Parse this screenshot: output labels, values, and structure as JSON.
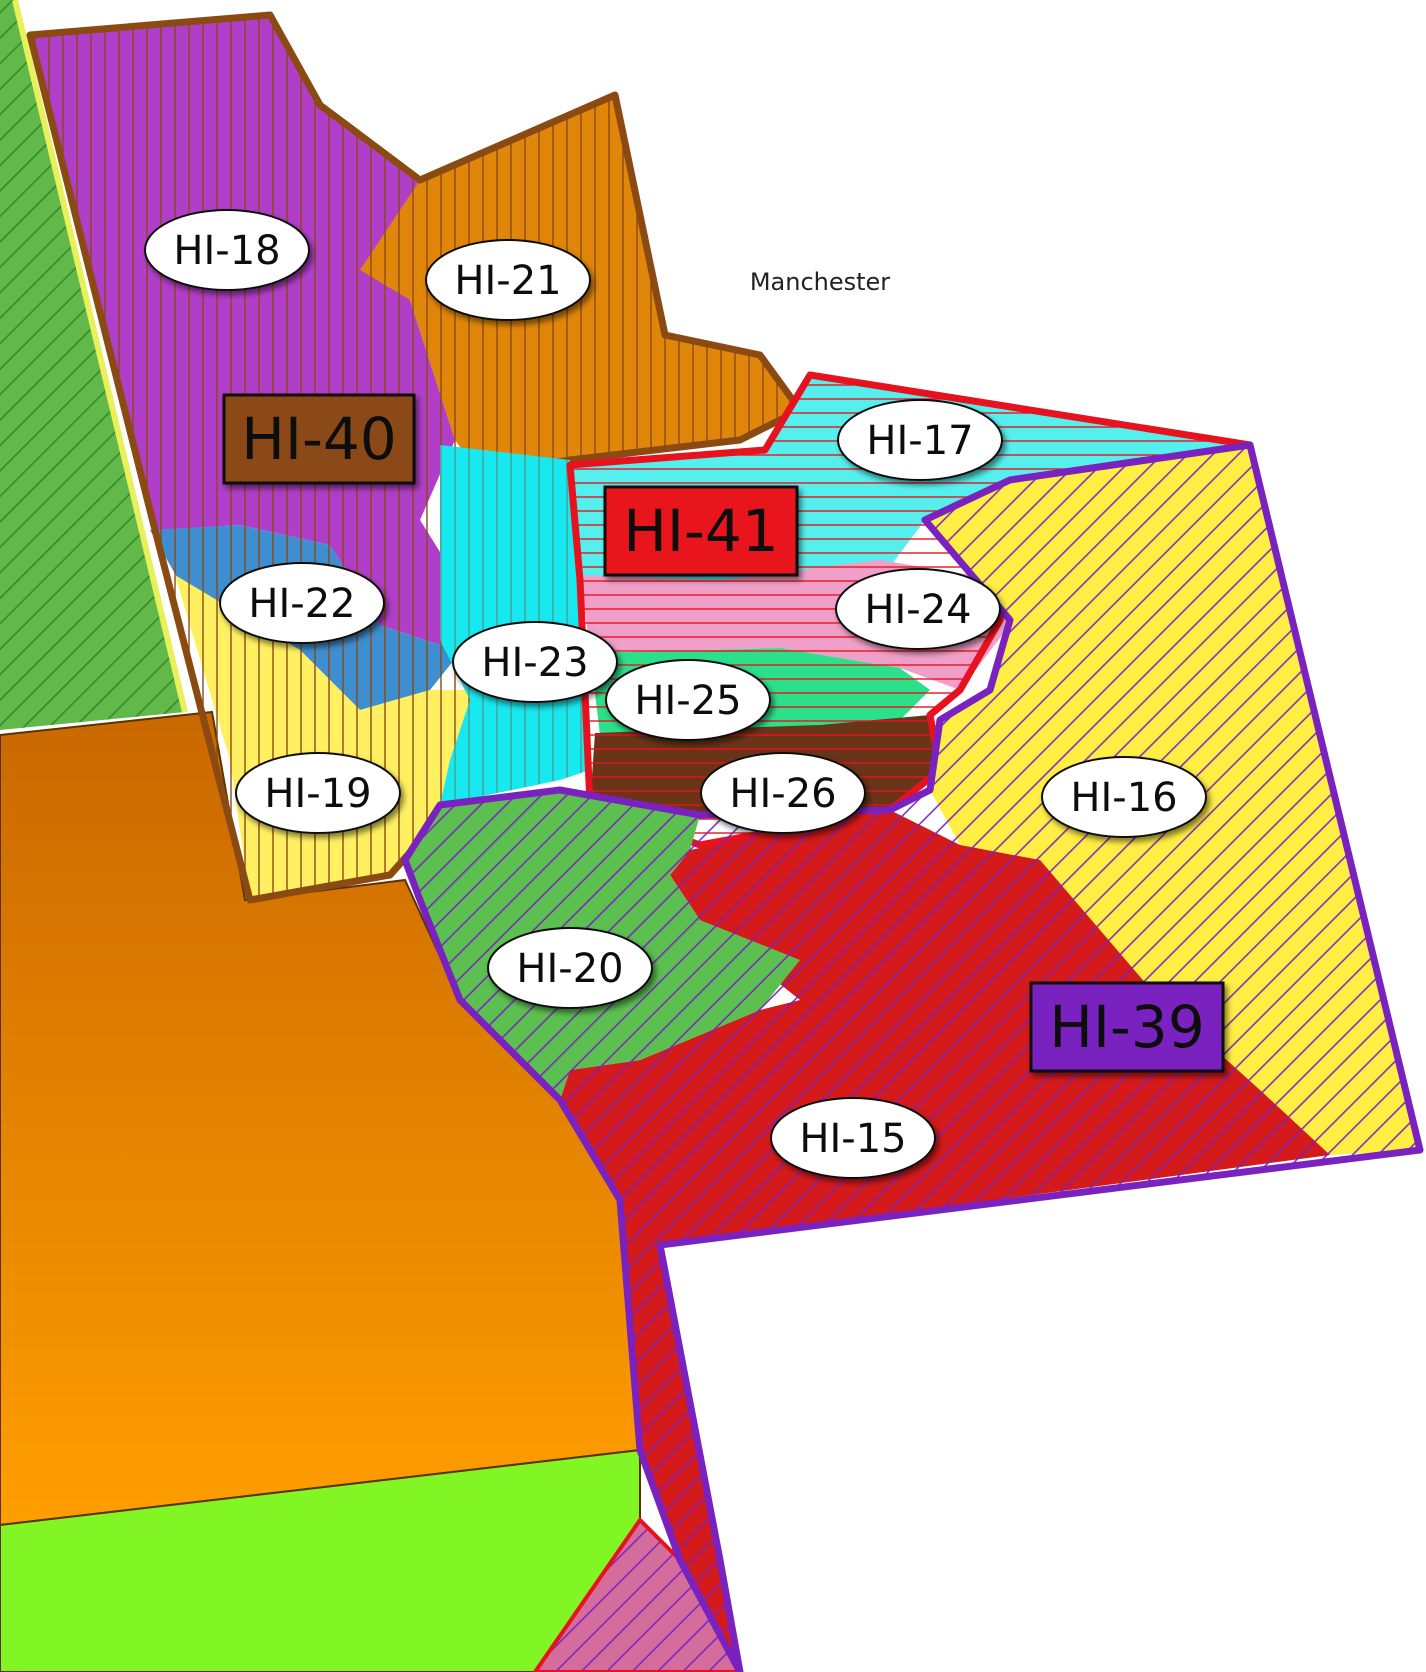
{
  "map": {
    "place_label": "Manchester",
    "legend_colors": {
      "hi_40": "#8a4a12",
      "hi_41": "#e8121e",
      "hi_39": "#7a22c0"
    },
    "group_labels": {
      "hi_40": "HI-40",
      "hi_41": "HI-41",
      "hi_39": "HI-39"
    },
    "district_labels": {
      "hi_15": "HI-15",
      "hi_16": "HI-16",
      "hi_17": "HI-17",
      "hi_18": "HI-18",
      "hi_19": "HI-19",
      "hi_20": "HI-20",
      "hi_21": "HI-21",
      "hi_22": "HI-22",
      "hi_23": "HI-23",
      "hi_24": "HI-24",
      "hi_25": "HI-25",
      "hi_26": "HI-26"
    }
  }
}
